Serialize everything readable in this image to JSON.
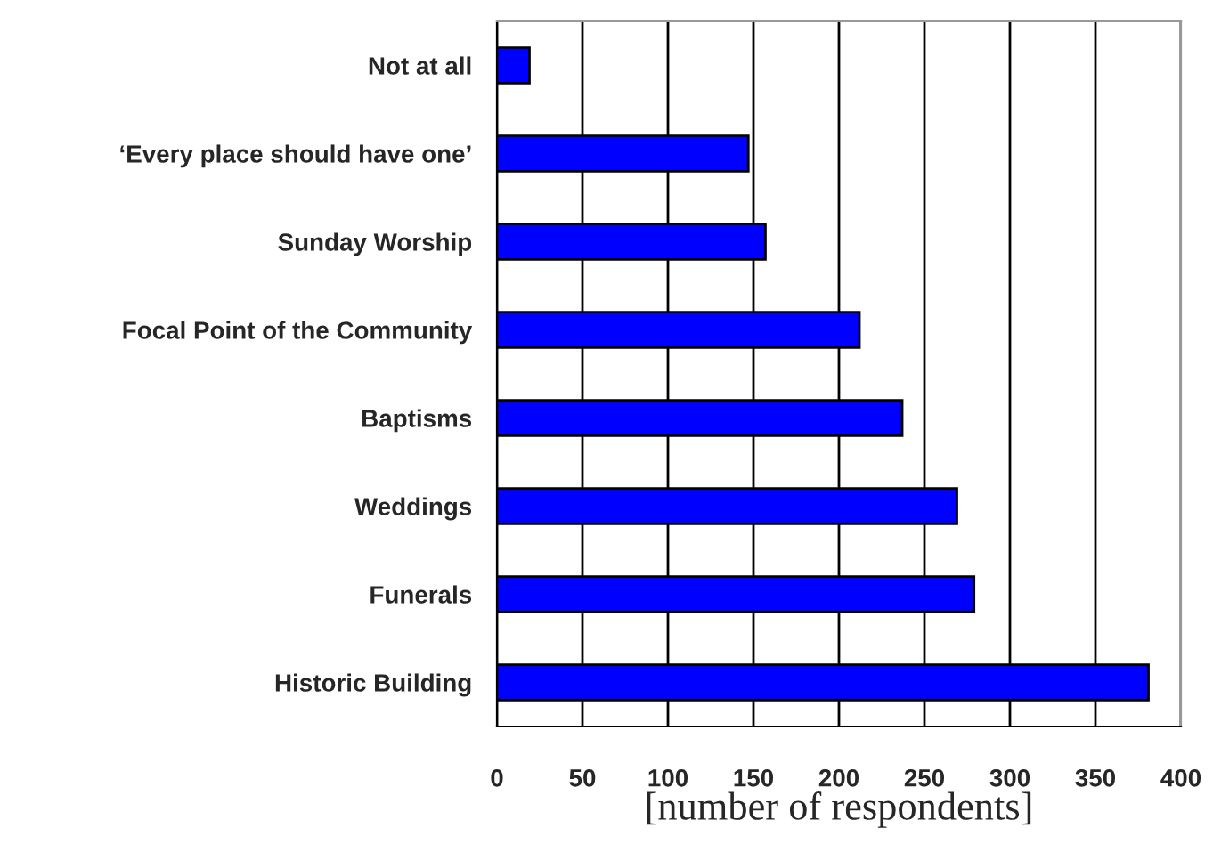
{
  "chart_data": {
    "type": "bar",
    "orientation": "horizontal",
    "xlabel": "[number of respondents]",
    "categories": [
      "Not at all",
      "‘Every place should have one’",
      "Sunday Worship",
      "Focal Point of the Community",
      "Baptisms",
      "Weddings",
      "Funerals",
      "Historic Building"
    ],
    "values": [
      19,
      147,
      157,
      212,
      237,
      269,
      279,
      381
    ],
    "color": "#0000ff",
    "xlim": [
      0,
      400
    ],
    "xticks": [
      0,
      50,
      100,
      150,
      200,
      250,
      300,
      350,
      400
    ],
    "grid": "x",
    "legend": false
  }
}
